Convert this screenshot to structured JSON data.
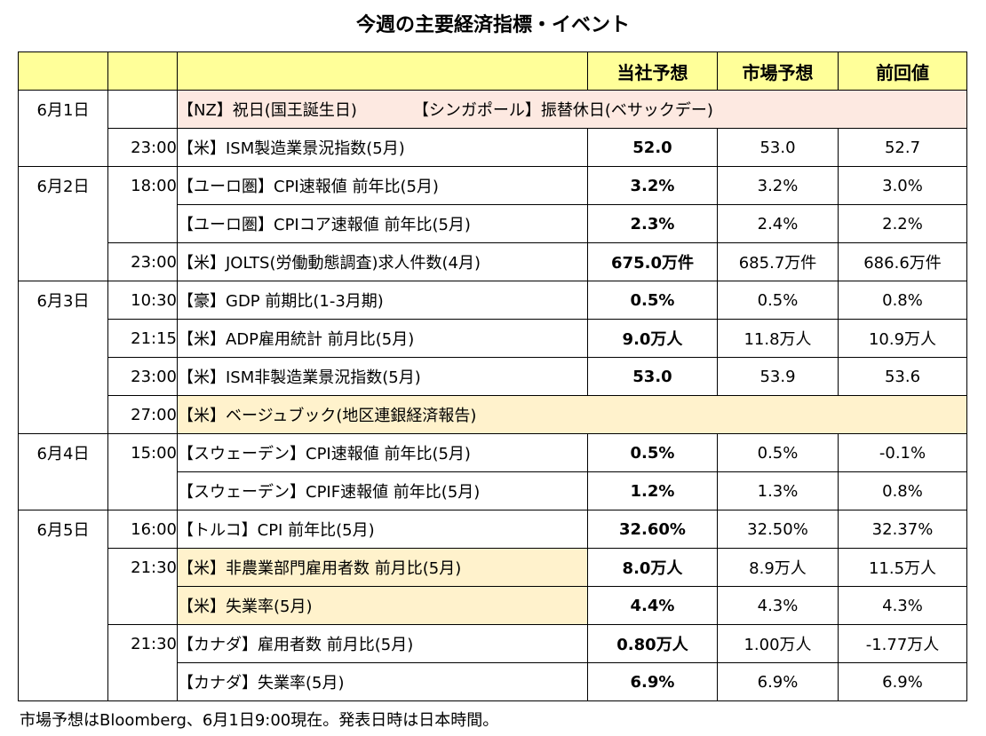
{
  "title": "今週の主要経済指標・イベント",
  "header": {
    "company_forecast": "当社予想",
    "market_forecast": "市場予想",
    "previous": "前回値"
  },
  "rows": [
    {
      "date": "6月1日",
      "time": "",
      "event": "【NZ】祝日(国王誕生日)　　　　【シンガポール】振替休日(ベサックデー)"
    },
    {
      "date": "",
      "time": "23:00",
      "event": "【米】ISM製造業景況指数(5月)",
      "company": "52.0",
      "market": "53.0",
      "previous": "52.7"
    },
    {
      "date": "6月2日",
      "time": "18:00",
      "event": "【ユーロ圏】CPI速報値 前年比(5月)",
      "company": "3.2%",
      "market": "3.2%",
      "previous": "3.0%"
    },
    {
      "date": "",
      "time": "",
      "event": "【ユーロ圏】CPIコア速報値 前年比(5月)",
      "company": "2.3%",
      "market": "2.4%",
      "previous": "2.2%"
    },
    {
      "date": "",
      "time": "23:00",
      "event": "【米】JOLTS(労働動態調査)求人件数(4月)",
      "company": "675.0万件",
      "market": "685.7万件",
      "previous": "686.6万件"
    },
    {
      "date": "6月3日",
      "time": "10:30",
      "event": "【豪】GDP 前期比(1-3月期)",
      "company": "0.5%",
      "market": "0.5%",
      "previous": "0.8%"
    },
    {
      "date": "",
      "time": "21:15",
      "event": "【米】ADP雇用統計 前月比(5月)",
      "company": "9.0万人",
      "market": "11.8万人",
      "previous": "10.9万人"
    },
    {
      "date": "",
      "time": "23:00",
      "event": "【米】ISM非製造業景況指数(5月)",
      "company": "53.0",
      "market": "53.9",
      "previous": "53.6"
    },
    {
      "date": "",
      "time": "27:00",
      "event": "【米】ベージュブック(地区連銀経済報告)"
    },
    {
      "date": "6月4日",
      "time": "15:00",
      "event": "【スウェーデン】CPI速報値 前年比(5月)",
      "company": "0.5%",
      "market": "0.5%",
      "previous": "-0.1%"
    },
    {
      "date": "",
      "time": "",
      "event": "【スウェーデン】CPIF速報値 前年比(5月)",
      "company": "1.2%",
      "market": "1.3%",
      "previous": "0.8%"
    },
    {
      "date": "6月5日",
      "time": "16:00",
      "event": "【トルコ】CPI 前年比(5月)",
      "company": "32.60%",
      "market": "32.50%",
      "previous": "32.37%"
    },
    {
      "date": "",
      "time": "21:30",
      "event": "【米】非農業部門雇用者数 前月比(5月)",
      "company": "8.0万人",
      "market": "8.9万人",
      "previous": "11.5万人"
    },
    {
      "date": "",
      "time": "",
      "event": "【米】失業率(5月)",
      "company": "4.4%",
      "market": "4.3%",
      "previous": "4.3%"
    },
    {
      "date": "",
      "time": "21:30",
      "event": "【カナダ】雇用者数 前月比(5月)",
      "company": "0.80万人",
      "market": "1.00万人",
      "previous": "-1.77万人"
    },
    {
      "date": "",
      "time": "",
      "event": "【カナダ】失業率(5月)",
      "company": "6.9%",
      "market": "6.9%",
      "previous": "6.9%"
    }
  ],
  "colors": {
    "header_bg": "#ffff99",
    "holiday_bg": "#fde9e1",
    "highlight_bg": "#fff2cc"
  },
  "footnote": "市場予想はBloomberg、6月1日9:00現在。発表日時は日本時間。"
}
